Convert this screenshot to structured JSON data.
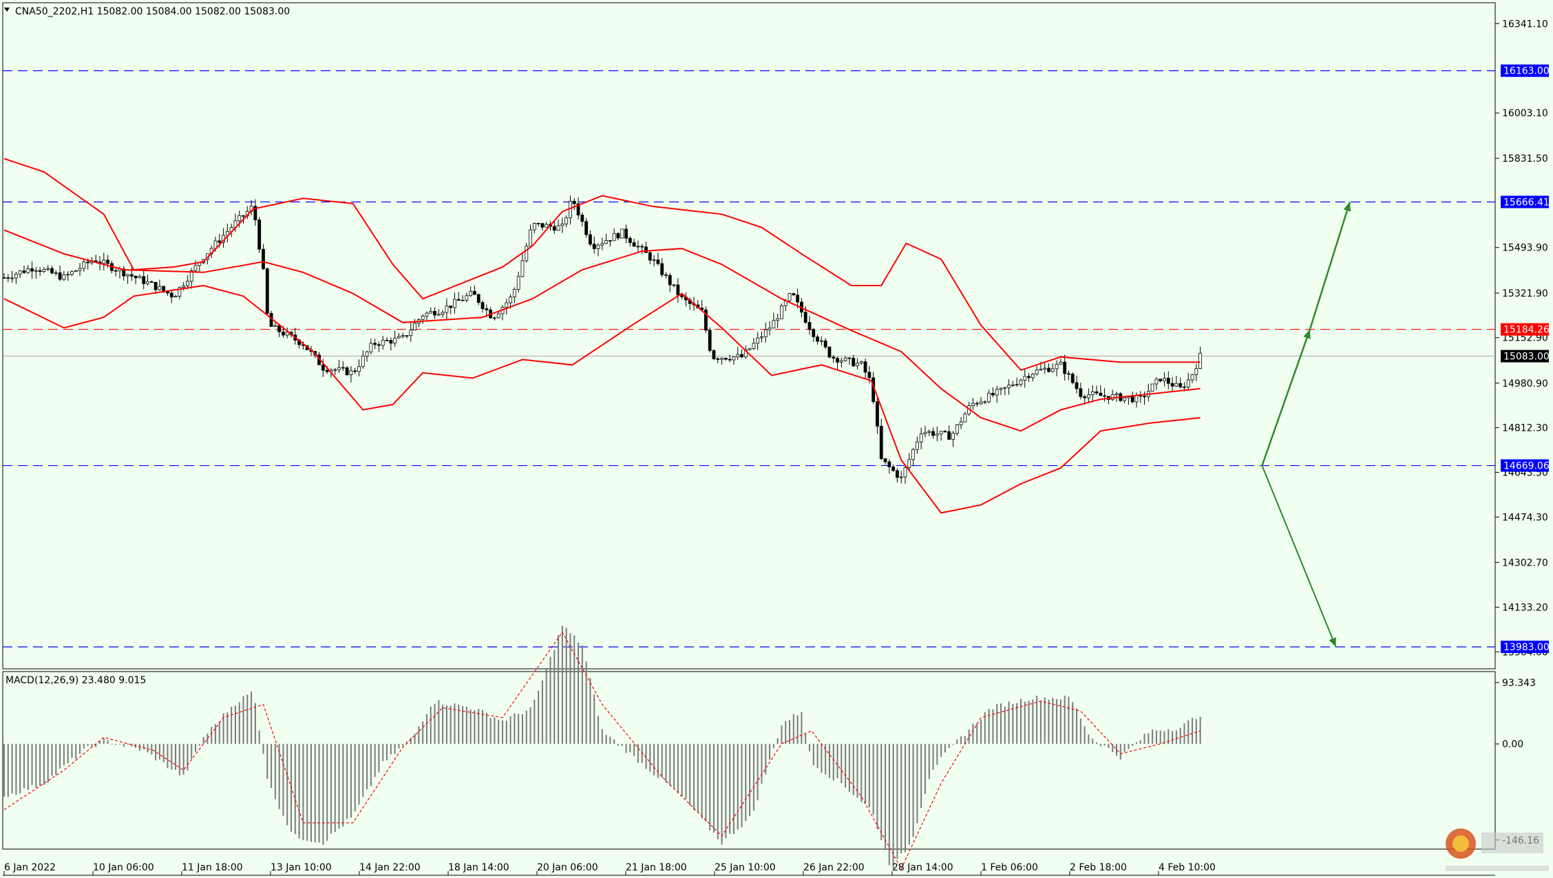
{
  "chart_data": {
    "type": "candlestick",
    "symbol_header": "CNA50_2202,H1  15082.00 15084.00 15082.00 15083.00",
    "indicator_header": "MACD(12,26,9) 23.480 9.015",
    "y_ticks": [
      "16341.10",
      "16003.10",
      "15831.50",
      "15493.90",
      "15321.90",
      "15152.90",
      "14980.90",
      "14812.30",
      "14643.50",
      "14474.30",
      "14302.70",
      "14133.20",
      "13964.00"
    ],
    "y_range": [
      13900,
      16420
    ],
    "level_labels": [
      {
        "value": 16163.0,
        "label": "16163.00",
        "color": "#0000ff"
      },
      {
        "value": 15666.41,
        "label": "15666.41",
        "color": "#0000ff"
      },
      {
        "value": 15184.26,
        "label": "15184.26",
        "color": "#ff0000"
      },
      {
        "value": 15083.0,
        "label": "15083.00",
        "color": "#000000"
      },
      {
        "value": 14669.06,
        "label": "14669.06",
        "color": "#0000ff"
      },
      {
        "value": 13983.0,
        "label": "13983.00",
        "color": "#0000ff"
      }
    ],
    "x_ticks": [
      "6 Jan 2022",
      "10 Jan 06:00",
      "11 Jan 18:00",
      "13 Jan 10:00",
      "14 Jan 22:00",
      "18 Jan 14:00",
      "20 Jan 06:00",
      "21 Jan 18:00",
      "25 Jan 10:00",
      "26 Jan 22:00",
      "28 Jan 14:00",
      "1 Feb 06:00",
      "2 Feb 18:00",
      "4 Feb 10:00"
    ],
    "close_path": [
      [
        0,
        15380
      ],
      [
        30,
        15420
      ],
      [
        60,
        15380
      ],
      [
        90,
        15450
      ],
      [
        120,
        15400
      ],
      [
        150,
        15350
      ],
      [
        170,
        15310
      ],
      [
        200,
        15460
      ],
      [
        230,
        15580
      ],
      [
        250,
        15650
      ],
      [
        260,
        15400
      ],
      [
        265,
        15200
      ],
      [
        300,
        15130
      ],
      [
        320,
        15040
      ],
      [
        350,
        15020
      ],
      [
        370,
        15130
      ],
      [
        400,
        15150
      ],
      [
        420,
        15240
      ],
      [
        440,
        15260
      ],
      [
        470,
        15320
      ],
      [
        490,
        15230
      ],
      [
        510,
        15310
      ],
      [
        530,
        15580
      ],
      [
        560,
        15570
      ],
      [
        570,
        15680
      ],
      [
        590,
        15500
      ],
      [
        620,
        15550
      ],
      [
        650,
        15450
      ],
      [
        680,
        15300
      ],
      [
        700,
        15250
      ],
      [
        710,
        15080
      ],
      [
        740,
        15080
      ],
      [
        770,
        15200
      ],
      [
        790,
        15320
      ],
      [
        810,
        15180
      ],
      [
        830,
        15080
      ],
      [
        860,
        15050
      ],
      [
        870,
        14980
      ],
      [
        880,
        14690
      ],
      [
        900,
        14620
      ],
      [
        920,
        14800
      ],
      [
        950,
        14780
      ],
      [
        970,
        14900
      ],
      [
        1000,
        14950
      ],
      [
        1030,
        15020
      ],
      [
        1060,
        15050
      ],
      [
        1080,
        14940
      ],
      [
        1110,
        14930
      ],
      [
        1140,
        14920
      ],
      [
        1160,
        15000
      ],
      [
        1180,
        14960
      ],
      [
        1190,
        15000
      ],
      [
        1200,
        15083
      ]
    ],
    "bands": {
      "upper": [
        [
          0,
          15830
        ],
        [
          40,
          15780
        ],
        [
          100,
          15620
        ],
        [
          130,
          15410
        ],
        [
          170,
          15420
        ],
        [
          200,
          15440
        ],
        [
          250,
          15640
        ],
        [
          300,
          15680
        ],
        [
          350,
          15660
        ],
        [
          390,
          15430
        ],
        [
          420,
          15300
        ],
        [
          500,
          15420
        ],
        [
          530,
          15500
        ],
        [
          560,
          15630
        ],
        [
          600,
          15690
        ],
        [
          650,
          15650
        ],
        [
          720,
          15620
        ],
        [
          760,
          15570
        ],
        [
          800,
          15470
        ],
        [
          850,
          15350
        ],
        [
          880,
          15350
        ],
        [
          905,
          15510
        ],
        [
          940,
          15450
        ],
        [
          980,
          15200
        ],
        [
          1020,
          15030
        ],
        [
          1060,
          15080
        ],
        [
          1120,
          15060
        ],
        [
          1200,
          15060
        ]
      ],
      "middle": [
        [
          0,
          15560
        ],
        [
          60,
          15470
        ],
        [
          120,
          15410
        ],
        [
          200,
          15400
        ],
        [
          260,
          15440
        ],
        [
          300,
          15400
        ],
        [
          350,
          15320
        ],
        [
          400,
          15210
        ],
        [
          480,
          15230
        ],
        [
          530,
          15300
        ],
        [
          580,
          15410
        ],
        [
          640,
          15480
        ],
        [
          680,
          15490
        ],
        [
          720,
          15430
        ],
        [
          780,
          15300
        ],
        [
          850,
          15180
        ],
        [
          900,
          15100
        ],
        [
          940,
          14960
        ],
        [
          980,
          14850
        ],
        [
          1020,
          14800
        ],
        [
          1060,
          14880
        ],
        [
          1100,
          14920
        ],
        [
          1150,
          14940
        ],
        [
          1200,
          14960
        ]
      ],
      "lower": [
        [
          0,
          15300
        ],
        [
          60,
          15190
        ],
        [
          100,
          15230
        ],
        [
          130,
          15310
        ],
        [
          200,
          15350
        ],
        [
          240,
          15310
        ],
        [
          270,
          15220
        ],
        [
          310,
          15100
        ],
        [
          360,
          14880
        ],
        [
          390,
          14900
        ],
        [
          420,
          15020
        ],
        [
          470,
          15000
        ],
        [
          520,
          15070
        ],
        [
          570,
          15050
        ],
        [
          630,
          15200
        ],
        [
          680,
          15320
        ],
        [
          720,
          15190
        ],
        [
          770,
          15010
        ],
        [
          820,
          15050
        ],
        [
          870,
          14990
        ],
        [
          900,
          14690
        ],
        [
          940,
          14490
        ],
        [
          980,
          14520
        ],
        [
          1020,
          14600
        ],
        [
          1060,
          14660
        ],
        [
          1100,
          14800
        ],
        [
          1150,
          14830
        ],
        [
          1200,
          14850
        ]
      ]
    },
    "projection": {
      "up": [
        [
          1262,
          14669
        ],
        [
          1310,
          15184
        ],
        [
          1350,
          15666
        ]
      ],
      "down": [
        [
          1262,
          14669
        ],
        [
          1336,
          13983
        ]
      ],
      "color": "#2a8a2a"
    },
    "macd": {
      "y_ticks": [
        "93.343",
        "0.00",
        "-146.16"
      ],
      "y_range": [
        -160,
        110
      ],
      "hist_path": [
        [
          0,
          -80
        ],
        [
          40,
          -60
        ],
        [
          80,
          -10
        ],
        [
          100,
          5
        ],
        [
          140,
          -10
        ],
        [
          180,
          -50
        ],
        [
          200,
          10
        ],
        [
          230,
          60
        ],
        [
          250,
          80
        ],
        [
          265,
          -60
        ],
        [
          290,
          -140
        ],
        [
          320,
          -150
        ],
        [
          350,
          -110
        ],
        [
          380,
          -30
        ],
        [
          410,
          10
        ],
        [
          430,
          65
        ],
        [
          470,
          55
        ],
        [
          500,
          35
        ],
        [
          530,
          55
        ],
        [
          560,
          180
        ],
        [
          580,
          150
        ],
        [
          600,
          20
        ],
        [
          640,
          -30
        ],
        [
          680,
          -80
        ],
        [
          720,
          -150
        ],
        [
          750,
          -110
        ],
        [
          780,
          30
        ],
        [
          800,
          50
        ],
        [
          810,
          -30
        ],
        [
          840,
          -60
        ],
        [
          870,
          -100
        ],
        [
          890,
          -190
        ],
        [
          910,
          -150
        ],
        [
          930,
          -40
        ],
        [
          960,
          10
        ],
        [
          990,
          55
        ],
        [
          1030,
          70
        ],
        [
          1070,
          70
        ],
        [
          1090,
          10
        ],
        [
          1120,
          -20
        ],
        [
          1150,
          20
        ],
        [
          1180,
          25
        ],
        [
          1200,
          45
        ]
      ],
      "signal_path": [
        [
          0,
          -100
        ],
        [
          60,
          -40
        ],
        [
          100,
          10
        ],
        [
          150,
          -10
        ],
        [
          180,
          -40
        ],
        [
          220,
          40
        ],
        [
          260,
          60
        ],
        [
          300,
          -120
        ],
        [
          350,
          -120
        ],
        [
          400,
          -5
        ],
        [
          440,
          55
        ],
        [
          500,
          40
        ],
        [
          560,
          170
        ],
        [
          600,
          60
        ],
        [
          660,
          -50
        ],
        [
          720,
          -140
        ],
        [
          780,
          0
        ],
        [
          810,
          20
        ],
        [
          860,
          -80
        ],
        [
          900,
          -190
        ],
        [
          940,
          -60
        ],
        [
          980,
          40
        ],
        [
          1040,
          65
        ],
        [
          1080,
          50
        ],
        [
          1120,
          -15
        ],
        [
          1160,
          0
        ],
        [
          1200,
          20
        ]
      ]
    }
  }
}
